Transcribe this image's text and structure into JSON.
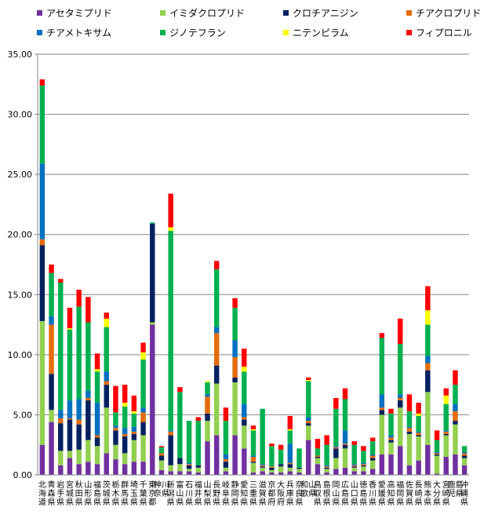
{
  "chart_data": {
    "type": "bar",
    "stacked": true,
    "title": "",
    "xlabel": "",
    "ylabel": "",
    "ylim": [
      0,
      35
    ],
    "yticks": [
      "0.00",
      "5.00",
      "10.00",
      "15.00",
      "20.00",
      "25.00",
      "30.00",
      "35.00"
    ],
    "grid": true,
    "legend_position": "top",
    "categories": [
      "北海道",
      "青森県",
      "岩手県",
      "宮城県",
      "秋田県",
      "山形県",
      "福島県",
      "茨城県",
      "栃木県",
      "群馬県",
      "埼玉県",
      "千葉県",
      "東京都",
      "神奈川県",
      "新潟県",
      "富山県",
      "石川県",
      "福井県",
      "山梨県",
      "長野県",
      "岐阜県",
      "静岡県",
      "愛知県",
      "三重県",
      "滋賀県",
      "京都府",
      "大阪府",
      "兵庫県",
      "奈良県",
      "和歌山県",
      "鳥取県",
      "島根県",
      "岡山県",
      "広島県",
      "山口県",
      "徳島県",
      "香川県",
      "愛媛県",
      "高知県",
      "福岡県",
      "佐賀県",
      "長崎県",
      "熊本県",
      "大分県",
      "宮崎県",
      "鹿児島県",
      "沖縄県"
    ],
    "series": [
      {
        "name": "アセタミプリド",
        "color": "#7030A0",
        "values": [
          2.5,
          4.4,
          0.8,
          1.4,
          0.9,
          1.1,
          0.9,
          1.8,
          1.3,
          0.9,
          1.1,
          1.1,
          12.5,
          0.4,
          0.3,
          0.3,
          0.3,
          0.2,
          2.8,
          3.3,
          0.3,
          3.3,
          2.2,
          0.2,
          0.3,
          0.2,
          0.2,
          0.3,
          0.2,
          2.9,
          0.9,
          0.2,
          0.5,
          0.6,
          0.3,
          0.3,
          0.5,
          1.7,
          1.7,
          2.4,
          0.8,
          1.2,
          2.5,
          0.1,
          1.5,
          1.7,
          0.8
        ]
      },
      {
        "name": "イミダクロプリド",
        "color": "#92D050",
        "values": [
          10.3,
          1.0,
          1.2,
          0.6,
          1.2,
          1.8,
          1.5,
          3.8,
          1.2,
          0.9,
          1.8,
          2.2,
          0.2,
          0.8,
          0.5,
          0.6,
          0.2,
          0.4,
          1.7,
          4.3,
          0.3,
          4.4,
          1.9,
          0.8,
          0.3,
          0.2,
          0.5,
          0.3,
          0.3,
          1.2,
          0.5,
          0.3,
          0.9,
          1.6,
          0.3,
          0.4,
          0.7,
          3.3,
          1.0,
          3.2,
          2.6,
          2.0,
          4.4,
          1.5,
          1.8,
          2.5,
          0.6
        ]
      },
      {
        "name": "クロチアニジン",
        "color": "#002060",
        "values": [
          6.3,
          3.0,
          2.3,
          2.6,
          2.1,
          3.3,
          0.7,
          1.9,
          1.2,
          1.4,
          0.5,
          1.1,
          8.2,
          0.4,
          2.5,
          0.5,
          0.3,
          0.2,
          0.6,
          1.5,
          0.5,
          0.4,
          0.5,
          0.1,
          0.1,
          0.2,
          0.2,
          0.3,
          0.1,
          0.2,
          0.1,
          0.1,
          0.8,
          0.3,
          0.1,
          0.1,
          0.2,
          0.4,
          0.2,
          0.6,
          0.2,
          0.1,
          1.8,
          0.1,
          0.1,
          0.3,
          0.2
        ]
      },
      {
        "name": "チアクロプリド",
        "color": "#E46C0A",
        "values": [
          0.5,
          4.1,
          0.4,
          0.1,
          0.4,
          0.2,
          0.2,
          0.3,
          0.2,
          0.2,
          0.2,
          0.8,
          0,
          0.2,
          0.3,
          0,
          0.1,
          0,
          1.4,
          2.7,
          0.2,
          1.7,
          0.2,
          0.4,
          0.1,
          0.1,
          0,
          0.1,
          0,
          0.2,
          0.1,
          0.1,
          0.1,
          0.1,
          0.1,
          0.1,
          0.2,
          0.2,
          0.2,
          0.2,
          0.3,
          0.2,
          0.6,
          0.1,
          0.2,
          0.8,
          0.2
        ]
      },
      {
        "name": "チアメトキサム",
        "color": "#0070C0",
        "values": [
          6.3,
          0.7,
          0.7,
          1.5,
          1.7,
          0.6,
          2.7,
          0.8,
          0.2,
          0.5,
          0.4,
          0.4,
          0,
          0,
          0.1,
          0,
          0.1,
          0,
          0.2,
          0.5,
          0.4,
          1.4,
          1.1,
          0.1,
          0.1,
          0,
          0,
          1.6,
          0,
          0.3,
          0,
          0.1,
          0.1,
          1.1,
          0.1,
          0.1,
          0.1,
          1.1,
          0.2,
          0.3,
          0.1,
          0.1,
          0.6,
          0.1,
          0.1,
          0.6,
          0.1
        ]
      },
      {
        "name": "ジノテフラン",
        "color": "#00B050",
        "values": [
          6.5,
          3.6,
          10.6,
          5.9,
          7.7,
          5.7,
          2.6,
          3.7,
          1.1,
          1.8,
          1.1,
          4.0,
          0.1,
          0.5,
          16.6,
          5.5,
          3.5,
          3.7,
          1.0,
          4.8,
          2.8,
          2.7,
          2.7,
          2.1,
          4.6,
          1.7,
          1.2,
          1.1,
          1.6,
          3.0,
          0.6,
          1.7,
          3.1,
          2.6,
          1.6,
          1.0,
          1.1,
          4.7,
          1.8,
          4.2,
          1.3,
          1.3,
          2.6,
          1.0,
          2.2,
          1.6,
          0.5
        ]
      },
      {
        "name": "ニテンピラム",
        "color": "#FFFF00",
        "values": [
          0,
          0,
          0,
          0.1,
          0,
          0,
          0.2,
          0.7,
          0,
          0.3,
          0.2,
          0.6,
          0,
          0,
          0.3,
          0,
          0,
          0,
          0.1,
          0,
          0,
          0,
          0.4,
          0.1,
          0,
          0,
          0,
          0.1,
          0,
          0.1,
          0,
          0,
          0,
          0,
          0,
          0,
          0,
          0,
          0,
          0,
          0,
          0.2,
          1.2,
          0,
          0.7,
          0,
          0
        ]
      },
      {
        "name": "フィプロニル",
        "color": "#FF0000",
        "values": [
          0.5,
          0.7,
          0.3,
          1.7,
          1.4,
          2.1,
          1.3,
          0.5,
          2.2,
          1.5,
          1.3,
          0.8,
          0,
          0.1,
          2.8,
          0.4,
          0,
          0.3,
          0,
          0.7,
          1.1,
          0.8,
          1.5,
          0.3,
          0,
          0.2,
          0.4,
          1.1,
          0,
          0.2,
          0.8,
          0.8,
          0.9,
          0.9,
          0.3,
          0.4,
          0.3,
          0.4,
          0.4,
          2.1,
          1.4,
          0.9,
          2.0,
          0.8,
          0.6,
          1.2,
          0
        ]
      }
    ]
  }
}
